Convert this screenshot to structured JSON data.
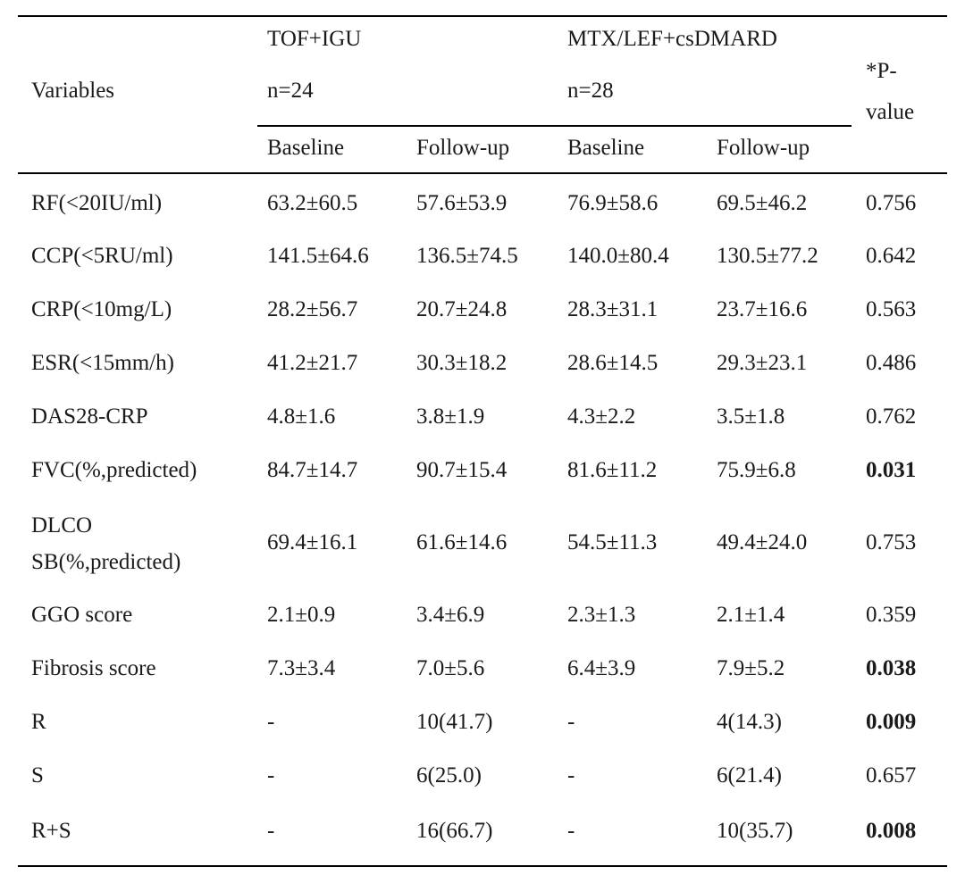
{
  "table": {
    "header": {
      "variables": "Variables",
      "group1_name": "TOF+IGU",
      "group1_n": "n=24",
      "group2_name": "MTX/LEF+csDMARD",
      "group2_n": "n=28",
      "pvalue_line1": "*P-",
      "pvalue_line2": "value",
      "baseline1": "Baseline",
      "followup1": "Follow-up",
      "baseline2": "Baseline",
      "followup2": "Follow-up"
    },
    "rows": [
      {
        "variable": "RF(<20IU/ml)",
        "tof_baseline": "63.2±60.5",
        "tof_followup": "57.6±53.9",
        "mtx_baseline": "76.9±58.6",
        "mtx_followup": "69.5±46.2",
        "p": "0.756",
        "sig": false
      },
      {
        "variable": "CCP(<5RU/ml)",
        "tof_baseline": "141.5±64.6",
        "tof_followup": "136.5±74.5",
        "mtx_baseline": "140.0±80.4",
        "mtx_followup": "130.5±77.2",
        "p": "0.642",
        "sig": false
      },
      {
        "variable": "CRP(<10mg/L)",
        "tof_baseline": "28.2±56.7",
        "tof_followup": "20.7±24.8",
        "mtx_baseline": "28.3±31.1",
        "mtx_followup": "23.7±16.6",
        "p": "0.563",
        "sig": false
      },
      {
        "variable": "ESR(<15mm/h)",
        "tof_baseline": "41.2±21.7",
        "tof_followup": "30.3±18.2",
        "mtx_baseline": "28.6±14.5",
        "mtx_followup": "29.3±23.1",
        "p": "0.486",
        "sig": false
      },
      {
        "variable": "DAS28-CRP",
        "tof_baseline": "4.8±1.6",
        "tof_followup": "3.8±1.9",
        "mtx_baseline": "4.3±2.2",
        "mtx_followup": "3.5±1.8",
        "p": "0.762",
        "sig": false
      },
      {
        "variable": "FVC(%,predicted)",
        "tof_baseline": "84.7±14.7",
        "tof_followup": "90.7±15.4",
        "mtx_baseline": "81.6±11.2",
        "mtx_followup": "75.9±6.8",
        "p": "0.031",
        "sig": true
      },
      {
        "variable_line1": "DLCO",
        "variable_line2": "SB(%,predicted)",
        "tof_baseline": "69.4±16.1",
        "tof_followup": "61.6±14.6",
        "mtx_baseline": "54.5±11.3",
        "mtx_followup": "49.4±24.0",
        "p": "0.753",
        "sig": false
      },
      {
        "variable": "GGO score",
        "tof_baseline": "2.1±0.9",
        "tof_followup": "3.4±6.9",
        "mtx_baseline": "2.3±1.3",
        "mtx_followup": "2.1±1.4",
        "p": "0.359",
        "sig": false
      },
      {
        "variable": "Fibrosis score",
        "tof_baseline": "7.3±3.4",
        "tof_followup": "7.0±5.6",
        "mtx_baseline": "6.4±3.9",
        "mtx_followup": "7.9±5.2",
        "p": "0.038",
        "sig": true
      },
      {
        "variable": "R",
        "tof_baseline": "-",
        "tof_followup": "10(41.7)",
        "mtx_baseline": "-",
        "mtx_followup": "4(14.3)",
        "p": "0.009",
        "sig": true
      },
      {
        "variable": "S",
        "tof_baseline": "-",
        "tof_followup": "6(25.0)",
        "mtx_baseline": "-",
        "mtx_followup": "6(21.4)",
        "p": "0.657",
        "sig": false
      },
      {
        "variable": "R+S",
        "tof_baseline": "-",
        "tof_followup": "16(66.7)",
        "mtx_baseline": "-",
        "mtx_followup": "10(35.7)",
        "p": "0.008",
        "sig": true
      }
    ]
  }
}
